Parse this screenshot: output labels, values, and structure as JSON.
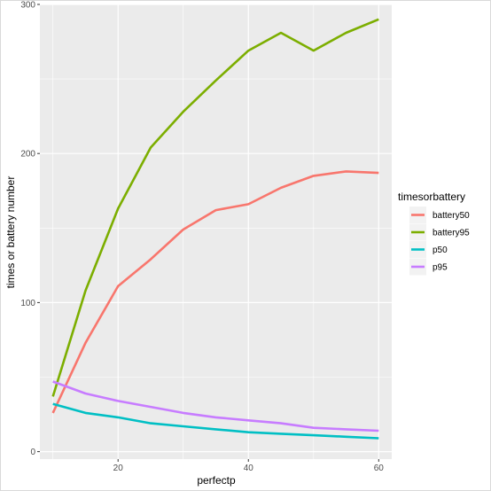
{
  "chart_data": {
    "type": "line",
    "xlabel": "perfectp",
    "ylabel": "times or battery number",
    "xlim": [
      8,
      62
    ],
    "ylim": [
      -5,
      300
    ],
    "xticks": [
      20,
      40,
      60
    ],
    "yticks": [
      0,
      100,
      200,
      300
    ],
    "grid": true,
    "legend": {
      "title": "timesorbattery",
      "position": "right"
    },
    "x": [
      10,
      15,
      20,
      25,
      30,
      35,
      40,
      45,
      50,
      55,
      60
    ],
    "series": [
      {
        "name": "battery50",
        "color": "#F8766D",
        "values": [
          26,
          73,
          111,
          129,
          149,
          162,
          166,
          177,
          185,
          188,
          187
        ]
      },
      {
        "name": "battery95",
        "color": "#7CAE00",
        "values": [
          37,
          108,
          163,
          204,
          228,
          249,
          269,
          281,
          269,
          281,
          290
        ]
      },
      {
        "name": "p50",
        "color": "#00BFC4",
        "values": [
          32,
          26,
          23,
          19,
          17,
          15,
          13,
          12,
          11,
          10,
          9
        ]
      },
      {
        "name": "p95",
        "color": "#C77CFF",
        "values": [
          47,
          39,
          34,
          30,
          26,
          23,
          21,
          19,
          16,
          15,
          14
        ]
      }
    ]
  }
}
